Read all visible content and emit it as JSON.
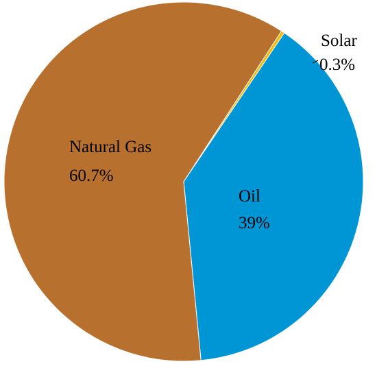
{
  "chart_data": {
    "type": "pie",
    "slices": [
      {
        "label": "Solar",
        "value": 0.3,
        "value_text": "0.3%",
        "color": "#f5b800"
      },
      {
        "label": "Oil",
        "value": 39,
        "value_text": "39%",
        "color": "#0096d6"
      },
      {
        "label": "Natural Gas",
        "value": 60.7,
        "value_text": "60.7%",
        "color": "#b8702e"
      }
    ],
    "start_angle_deg": 33,
    "direction": "clockwise",
    "legend": "none",
    "labels": "inside slices; Solar label outside with leader line"
  }
}
